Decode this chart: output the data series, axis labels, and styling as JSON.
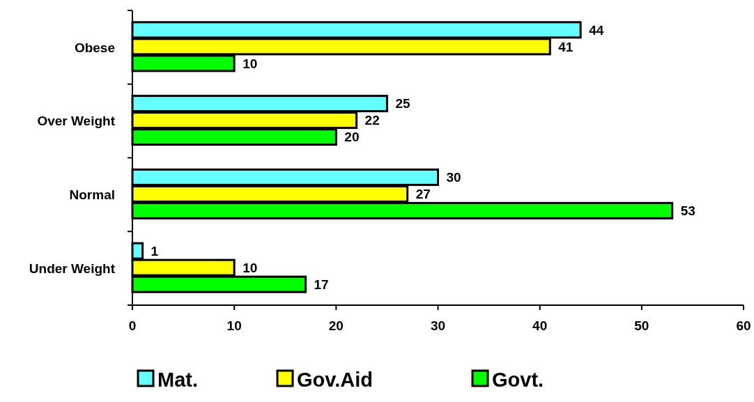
{
  "chart_data": {
    "type": "bar",
    "orientation": "horizontal",
    "categories": [
      "Obese",
      "Over Weight",
      "Normal",
      "Under Weight"
    ],
    "series": [
      {
        "name": "Mat.",
        "color": "#66ffff",
        "values": [
          44,
          25,
          30,
          1
        ]
      },
      {
        "name": "Gov.Aid",
        "color": "#ffff00",
        "values": [
          41,
          22,
          27,
          10
        ]
      },
      {
        "name": "Govt.",
        "color": "#00ff00",
        "values": [
          10,
          20,
          53,
          17
        ]
      }
    ],
    "xlim": [
      0,
      60
    ],
    "xticks": [
      0,
      10,
      20,
      30,
      40,
      50,
      60
    ],
    "data_labels": true,
    "legend": "bottom",
    "grid": false
  }
}
